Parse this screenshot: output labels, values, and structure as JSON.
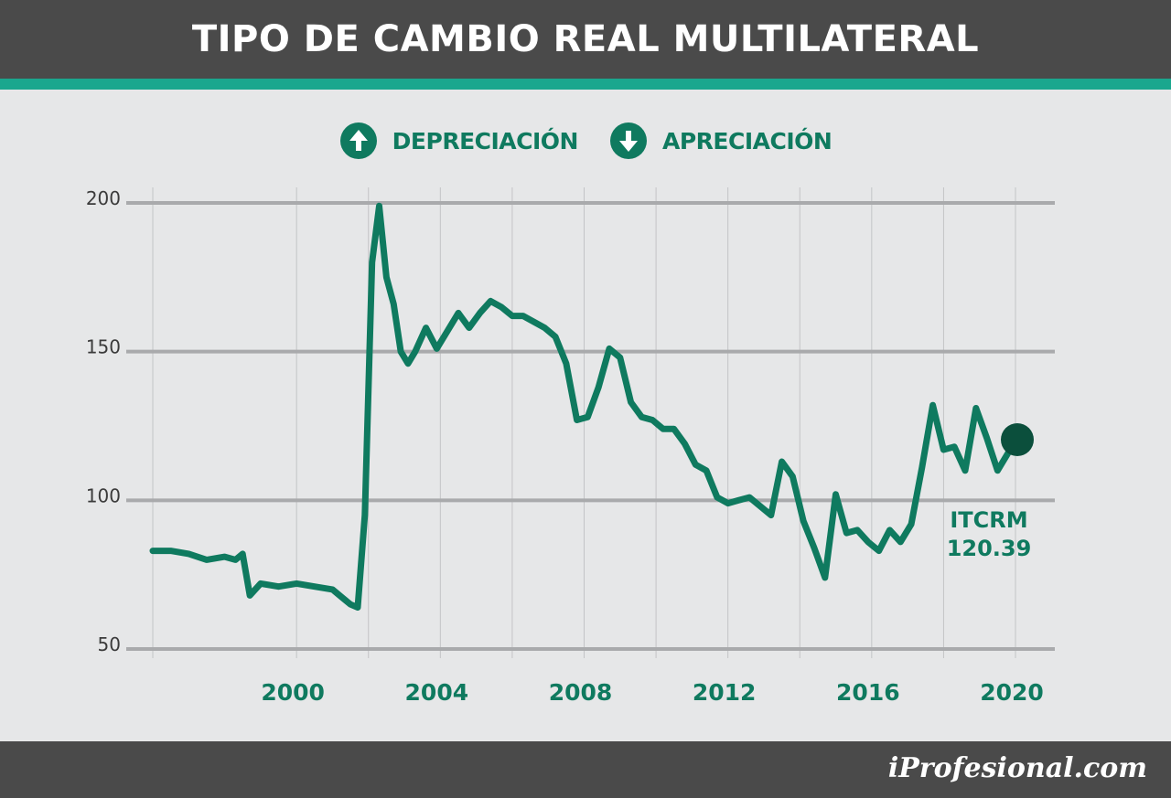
{
  "header": {
    "title": "TIPO DE CAMBIO REAL MULTILATERAL"
  },
  "legend": {
    "items": [
      {
        "label": "DEPRECIACIÓN",
        "icon": "arrow-up-circle-icon"
      },
      {
        "label": "APRECIACIÓN",
        "icon": "arrow-down-circle-icon"
      }
    ]
  },
  "colors": {
    "line": "#0f7a5f",
    "accent": "#1aa78e",
    "marker": "#0b4f3c",
    "header_bg": "#4a4a4a",
    "plot_bg": "#e6e7e8",
    "gridline": "#a9aaac"
  },
  "chart_data": {
    "type": "line",
    "title": "TIPO DE CAMBIO REAL MULTILATERAL",
    "xlabel": "",
    "ylabel": "",
    "ylim": [
      50,
      200
    ],
    "xlim": [
      1996,
      2020
    ],
    "y_ticks": [
      50,
      100,
      150,
      200
    ],
    "x_ticks": [
      2000,
      2004,
      2008,
      2012,
      2016,
      2020
    ],
    "grid": "horizontal",
    "series": [
      {
        "x": [
          1996.0,
          1996.5,
          1997.0,
          1997.5,
          1998.0,
          1998.3,
          1998.5,
          1998.7,
          1999.0,
          1999.5,
          2000.0,
          2000.5,
          2001.0,
          2001.3,
          2001.5,
          2001.7,
          2001.9,
          2002.1,
          2002.3,
          2002.5,
          2002.7,
          2002.9,
          2003.1,
          2003.3,
          2003.6,
          2003.9,
          2004.2,
          2004.5,
          2004.8,
          2005.1,
          2005.4,
          2005.7,
          2006.0,
          2006.3,
          2006.6,
          2006.9,
          2007.2,
          2007.5,
          2007.8,
          2008.1,
          2008.4,
          2008.7,
          2009.0,
          2009.3,
          2009.6,
          2009.9,
          2010.2,
          2010.5,
          2010.8,
          2011.1,
          2011.4,
          2011.7,
          2012.0,
          2012.3,
          2012.6,
          2012.9,
          2013.2,
          2013.5,
          2013.8,
          2014.1,
          2014.4,
          2014.7,
          2015.0,
          2015.3,
          2015.6,
          2015.9,
          2016.2,
          2016.5,
          2016.8,
          2017.1,
          2017.4,
          2017.7,
          2018.0,
          2018.3,
          2018.6,
          2018.9,
          2019.2,
          2019.5,
          2019.8
        ],
        "values": [
          83,
          83,
          82,
          80,
          81,
          80,
          82,
          68,
          72,
          71,
          72,
          71,
          70,
          67,
          65,
          64,
          95,
          180,
          199,
          175,
          166,
          150,
          146,
          150,
          158,
          151,
          157,
          163,
          158,
          163,
          167,
          165,
          162,
          162,
          160,
          158,
          155,
          146,
          127,
          128,
          138,
          151,
          148,
          133,
          128,
          127,
          124,
          124,
          119,
          112,
          110,
          101,
          99,
          100,
          101,
          98,
          95,
          113,
          108,
          93,
          84,
          74,
          102,
          89,
          90,
          86,
          83,
          90,
          86,
          92,
          111,
          132,
          117,
          118,
          110,
          131,
          121,
          110,
          116
        ]
      }
    ],
    "annotations": [
      {
        "label": "ITCRM",
        "value_label": "120.39",
        "x": 2020.0,
        "y": 120.39
      }
    ]
  },
  "footer": {
    "brand_prefix": "i",
    "brand_name": "Profesional.com"
  }
}
